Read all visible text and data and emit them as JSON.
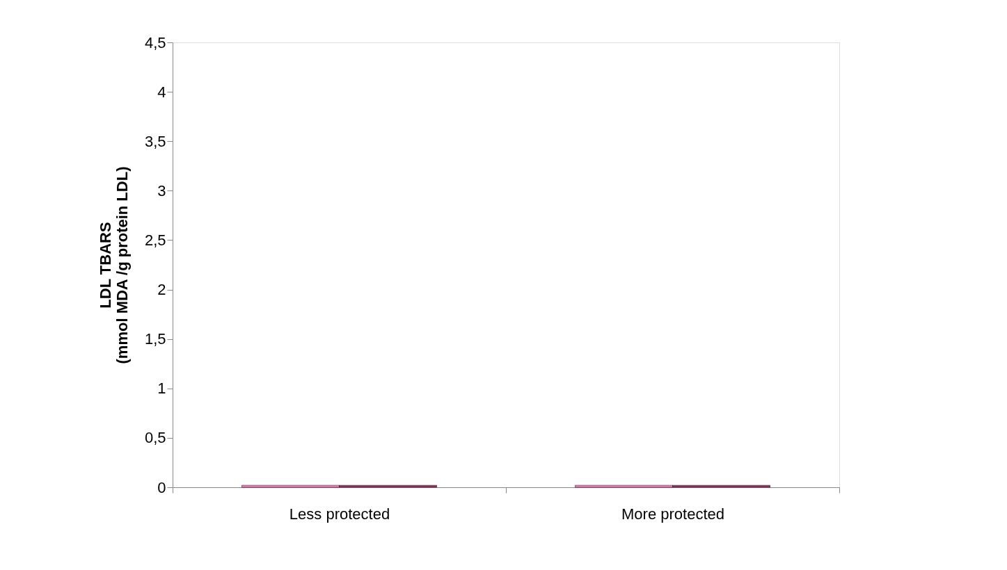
{
  "chart_data": {
    "type": "bar",
    "ylabel": "LDL TBARS\n(mmol MDA /g protein LDL)",
    "categories": [
      "Less protected",
      "More protected"
    ],
    "series": [
      {
        "color": "#ff80c0",
        "values": [
          0.02,
          0.02
        ]
      },
      {
        "color": "#993366",
        "values": [
          0.02,
          0.02
        ]
      }
    ],
    "ylim": [
      0,
      4.5
    ],
    "yticks": [
      0,
      {
        "value": 0.5,
        "label": "0,5"
      },
      1,
      {
        "value": 1.5,
        "label": "1,5"
      },
      2,
      {
        "value": 2.5,
        "label": "2,5"
      },
      3,
      {
        "value": 3.5,
        "label": "3,5"
      },
      4,
      {
        "value": 4.5,
        "label": "4,5"
      }
    ]
  }
}
